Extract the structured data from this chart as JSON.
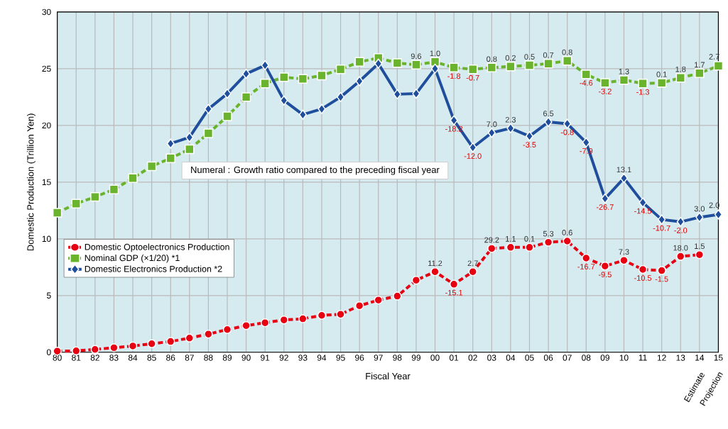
{
  "chart_data": {
    "type": "line",
    "xlabel": "Fiscal Year",
    "ylabel": "Domestic Production (Trillion Yen)",
    "categories": [
      "80",
      "81",
      "82",
      "83",
      "84",
      "85",
      "86",
      "87",
      "88",
      "89",
      "90",
      "91",
      "92",
      "93",
      "94",
      "95",
      "96",
      "97",
      "98",
      "99",
      "00",
      "01",
      "02",
      "03",
      "04",
      "05",
      "06",
      "07",
      "08",
      "09",
      "10",
      "11",
      "12",
      "13",
      "14",
      "15"
    ],
    "ylim": [
      0,
      30
    ],
    "yticks": [
      0,
      5,
      10,
      15,
      20,
      25,
      30
    ],
    "grid": true,
    "legend": "left",
    "series": [
      {
        "name": "Domestic Optoelectronics Production",
        "color": "#e60012",
        "marker": "circle",
        "line_style": "dashed",
        "values": [
          0.1,
          0.12,
          0.25,
          0.4,
          0.55,
          0.75,
          0.95,
          1.25,
          1.6,
          2.0,
          2.35,
          2.6,
          2.85,
          2.95,
          3.25,
          3.35,
          4.1,
          4.6,
          4.95,
          6.35,
          7.1,
          6.0,
          7.1,
          9.15,
          9.25,
          9.25,
          9.7,
          9.8,
          8.3,
          7.6,
          8.1,
          7.3,
          7.2,
          8.45,
          8.6,
          null
        ]
      },
      {
        "name": "Nominal GDP (×1/20) *1",
        "color": "#6ab42d",
        "marker": "square",
        "line_style": "dashed",
        "values": [
          12.3,
          13.1,
          13.7,
          14.35,
          15.35,
          16.4,
          17.1,
          17.9,
          19.3,
          20.8,
          22.5,
          23.7,
          24.25,
          24.1,
          24.4,
          24.95,
          25.6,
          25.95,
          25.5,
          25.35,
          25.6,
          25.1,
          24.95,
          25.1,
          25.2,
          25.3,
          25.45,
          25.7,
          24.5,
          23.75,
          24.0,
          23.7,
          23.75,
          24.2,
          24.6,
          25.25
        ]
      },
      {
        "name": "Domestic Electronics Production *2",
        "color": "#1f4e9c",
        "marker": "diamond",
        "line_style": "solid",
        "values": [
          null,
          null,
          null,
          null,
          null,
          null,
          18.4,
          18.95,
          21.45,
          22.8,
          24.55,
          25.3,
          22.2,
          20.95,
          21.45,
          22.5,
          23.9,
          25.45,
          22.75,
          22.8,
          25.0,
          20.45,
          18.05,
          19.35,
          19.75,
          19.05,
          20.3,
          20.15,
          18.5,
          13.55,
          15.35,
          13.2,
          11.7,
          11.5,
          11.9,
          12.15
        ]
      }
    ],
    "annotations": [
      "Numeral : Growth ratio compared to the preceding fiscal year",
      "Estimate",
      "Projection",
      {
        "text": "11.2",
        "x": "00",
        "y": 7.1
      },
      {
        "text": "-15.1",
        "x": "01",
        "y": 6.0
      },
      {
        "text": "2.7",
        "x": "02",
        "y": 7.1
      },
      {
        "text": "29.2",
        "x": "03",
        "y": 9.15
      },
      {
        "text": "1.1",
        "x": "04",
        "y": 9.25
      },
      {
        "text": "0.1",
        "x": "05",
        "y": 9.25
      },
      {
        "text": "5.3",
        "x": "06",
        "y": 9.7
      },
      {
        "text": "0.6",
        "x": "07",
        "y": 9.8
      },
      {
        "text": "-16.7",
        "x": "08",
        "y": 8.3
      },
      {
        "text": "-9.5",
        "x": "09",
        "y": 7.6
      },
      {
        "text": "7.3",
        "x": "10",
        "y": 8.1
      },
      {
        "text": "-10.5",
        "x": "11",
        "y": 7.3
      },
      {
        "text": "-1.5",
        "x": "12",
        "y": 7.2
      },
      {
        "text": "18.0",
        "x": "13",
        "y": 8.45
      },
      {
        "text": "1.5",
        "x": "14",
        "y": 8.6
      },
      {
        "text": "9.6",
        "x": "99",
        "y": 25.35
      },
      {
        "text": "1.0",
        "x": "00",
        "y": 25.6
      },
      {
        "text": "-1.8",
        "x": "01",
        "y": 25.1
      },
      {
        "text": "-0.7",
        "x": "02",
        "y": 24.95
      },
      {
        "text": "0.8",
        "x": "03",
        "y": 25.1
      },
      {
        "text": "0.2",
        "x": "04",
        "y": 25.2
      },
      {
        "text": "0.5",
        "x": "05",
        "y": 25.3
      },
      {
        "text": "0.7",
        "x": "06",
        "y": 25.45
      },
      {
        "text": "0.8",
        "x": "07",
        "y": 25.7
      },
      {
        "text": "-4.6",
        "x": "08",
        "y": 24.5
      },
      {
        "text": "-3.2",
        "x": "09",
        "y": 23.75
      },
      {
        "text": "1.3",
        "x": "10",
        "y": 24.0
      },
      {
        "text": "-1.3",
        "x": "11",
        "y": 23.7
      },
      {
        "text": "0.1",
        "x": "12",
        "y": 23.75
      },
      {
        "text": "1.8",
        "x": "13",
        "y": 24.2
      },
      {
        "text": "1.7",
        "x": "14",
        "y": 24.6
      },
      {
        "text": "2.7",
        "x": "15",
        "y": 25.25
      },
      {
        "text": "-18.2",
        "x": "01",
        "y": 20.45
      },
      {
        "text": "-12.0",
        "x": "02",
        "y": 18.05
      },
      {
        "text": "7.0",
        "x": "03",
        "y": 19.35
      },
      {
        "text": "2.3",
        "x": "04",
        "y": 19.75
      },
      {
        "text": "-3.5",
        "x": "05",
        "y": 19.05
      },
      {
        "text": "6.5",
        "x": "06",
        "y": 20.3
      },
      {
        "text": "-0.8",
        "x": "07",
        "y": 20.15
      },
      {
        "text": "-7.9",
        "x": "08",
        "y": 18.5
      },
      {
        "text": "-26.7",
        "x": "09",
        "y": 13.55
      },
      {
        "text": "13.1",
        "x": "10",
        "y": 15.35
      },
      {
        "text": "-14.5",
        "x": "11",
        "y": 13.2
      },
      {
        "text": "-10.7",
        "x": "12",
        "y": 11.7
      },
      {
        "text": "-2.0",
        "x": "13",
        "y": 11.5
      },
      {
        "text": "3.0",
        "x": "14",
        "y": 11.9
      },
      {
        "text": "2.0",
        "x": "15",
        "y": 12.15
      }
    ]
  }
}
